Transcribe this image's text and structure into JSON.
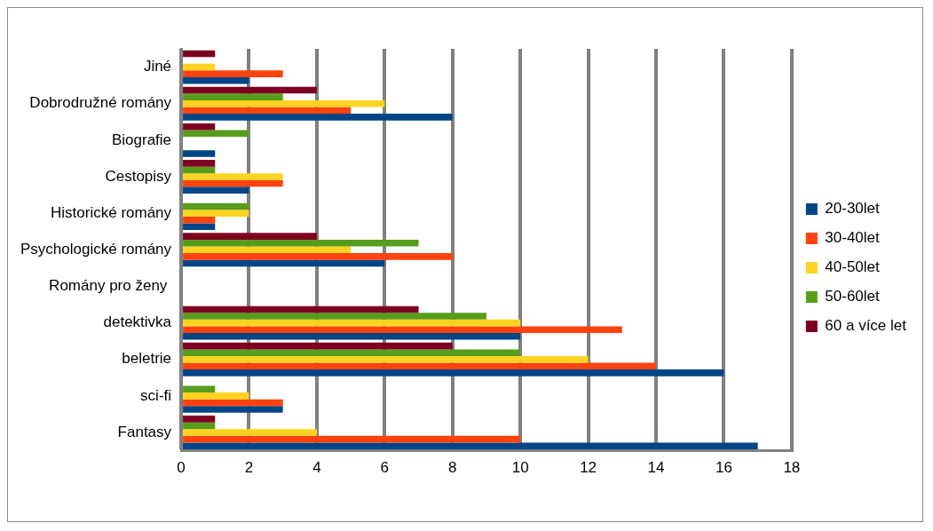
{
  "chart_data": {
    "type": "bar",
    "orientation": "horizontal",
    "categories": [
      "Jiné",
      "Dobrodružné romány",
      "Biografie",
      "Cestopisy",
      "Historické romány",
      "Psychologické romány",
      "Romány pro ženy ",
      "detektivka",
      "beletrie",
      "sci-fi",
      "Fantasy"
    ],
    "series": [
      {
        "name": "20-30let",
        "color": "#004586",
        "values": [
          2,
          8,
          1,
          2,
          1,
          6,
          0,
          10,
          16,
          3,
          17
        ]
      },
      {
        "name": "30-40let",
        "color": "#ff420e",
        "values": [
          3,
          5,
          0,
          3,
          1,
          8,
          0,
          13,
          14,
          3,
          10
        ]
      },
      {
        "name": "40-50let",
        "color": "#ffd320",
        "values": [
          1,
          6,
          0,
          3,
          2,
          5,
          0,
          10,
          12,
          2,
          4
        ]
      },
      {
        "name": "50-60let",
        "color": "#579d1c",
        "values": [
          0,
          3,
          2,
          1,
          2,
          7,
          0,
          9,
          10,
          1,
          1
        ]
      },
      {
        "name": "60 a více let",
        "color": "#7e0021",
        "values": [
          1,
          4,
          1,
          1,
          0,
          4,
          0,
          7,
          8,
          0,
          1
        ]
      }
    ],
    "xlim": [
      0,
      18
    ],
    "xticks": [
      0,
      2,
      4,
      6,
      8,
      10,
      12,
      14,
      16,
      18
    ],
    "grid": "x",
    "legend": "right"
  }
}
